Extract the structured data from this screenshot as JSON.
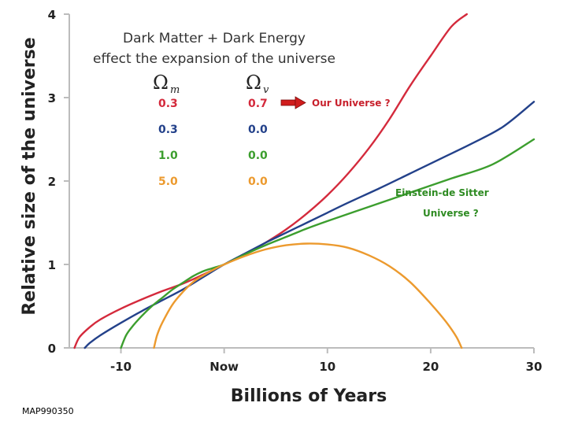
{
  "chart_data": {
    "type": "line",
    "title_lines": [
      "Dark Matter + Dark Energy",
      "effect the expansion of the universe"
    ],
    "xlabel": "Billions of Years",
    "ylabel": "Relative size of the universe",
    "xlim": [
      -15,
      30
    ],
    "ylim": [
      0,
      4
    ],
    "x_ticks": [
      {
        "value": -10,
        "label": "-10"
      },
      {
        "value": 0,
        "label": "Now"
      },
      {
        "value": 10,
        "label": "10"
      },
      {
        "value": 20,
        "label": "20"
      },
      {
        "value": 30,
        "label": "30"
      }
    ],
    "y_ticks": [
      {
        "value": 0,
        "label": "0"
      },
      {
        "value": 1,
        "label": "1"
      },
      {
        "value": 2,
        "label": "2"
      },
      {
        "value": 3,
        "label": "3"
      },
      {
        "value": 4,
        "label": "4"
      }
    ],
    "table_headers": {
      "omega": "Ω",
      "m": "m",
      "v": "v"
    },
    "series": [
      {
        "name": "0.3 / 0.7",
        "omega_m": "0.3",
        "omega_v": "0.7",
        "color": "#d42a3c",
        "x": [
          -14.5,
          -14.0,
          -13.0,
          -12.0,
          -10.0,
          -8.0,
          -6.0,
          -4.0,
          -2.0,
          0.0,
          2.0,
          4.0,
          6.0,
          8.0,
          10.0,
          12.0,
          14.0,
          16.0,
          18.0,
          20.0,
          22.0,
          23.5
        ],
        "y": [
          0.0,
          0.13,
          0.25,
          0.34,
          0.47,
          0.58,
          0.68,
          0.77,
          0.88,
          1.0,
          1.12,
          1.26,
          1.42,
          1.61,
          1.83,
          2.09,
          2.39,
          2.74,
          3.14,
          3.5,
          3.85,
          4.0
        ]
      },
      {
        "name": "0.3 / 0.0",
        "omega_m": "0.3",
        "omega_v": "0.0",
        "color": "#23418a",
        "x": [
          -13.5,
          -13.0,
          -12.0,
          -10.0,
          -8.0,
          -6.0,
          -4.0,
          -2.0,
          0.0,
          2.0,
          4.0,
          6.0,
          8.0,
          10.0,
          12.0,
          15.0,
          18.0,
          21.0,
          24.0,
          27.0,
          30.0
        ],
        "y": [
          0.0,
          0.06,
          0.15,
          0.3,
          0.44,
          0.57,
          0.7,
          0.85,
          1.0,
          1.13,
          1.26,
          1.38,
          1.5,
          1.62,
          1.74,
          1.91,
          2.09,
          2.27,
          2.45,
          2.65,
          2.95
        ]
      },
      {
        "name": "1.0 / 0.0",
        "omega_m": "1.0",
        "omega_v": "0.0",
        "color": "#3c9e2e",
        "x": [
          -10.0,
          -9.5,
          -9.0,
          -8.0,
          -7.0,
          -6.0,
          -5.0,
          -4.0,
          -3.0,
          -2.0,
          -1.0,
          0.0,
          2.0,
          4.0,
          6.0,
          8.0,
          10.0,
          14.0,
          18.0,
          22.0,
          26.0,
          30.0
        ],
        "y": [
          0.0,
          0.15,
          0.24,
          0.38,
          0.5,
          0.6,
          0.7,
          0.78,
          0.86,
          0.92,
          0.96,
          1.0,
          1.12,
          1.23,
          1.33,
          1.43,
          1.52,
          1.69,
          1.86,
          2.03,
          2.2,
          2.5
        ]
      },
      {
        "name": "5.0 / 0.0",
        "omega_m": "5.0",
        "omega_v": "0.0",
        "color": "#ec9a2e",
        "x": [
          -6.8,
          -6.5,
          -6.0,
          -5.0,
          -4.0,
          -3.0,
          -2.0,
          -1.0,
          0.0,
          2.0,
          4.0,
          6.0,
          8.0,
          10.0,
          12.0,
          14.0,
          16.0,
          18.0,
          20.0,
          21.5,
          22.5,
          23.0
        ],
        "y": [
          0.0,
          0.15,
          0.3,
          0.52,
          0.67,
          0.79,
          0.87,
          0.94,
          1.0,
          1.1,
          1.18,
          1.23,
          1.25,
          1.24,
          1.2,
          1.11,
          0.98,
          0.79,
          0.53,
          0.31,
          0.13,
          0.0
        ]
      }
    ],
    "annotations": [
      {
        "text": "Our Universe ?",
        "color": "#c8202c"
      },
      {
        "text": "Einstein-de Sitter",
        "color": "#2e8b22"
      },
      {
        "text": "Universe ?",
        "color": "#2e8b22"
      }
    ]
  },
  "credit": "MAP990350",
  "colors": {
    "frame": "#bcbcbc",
    "arrow": "#d01c1c"
  }
}
